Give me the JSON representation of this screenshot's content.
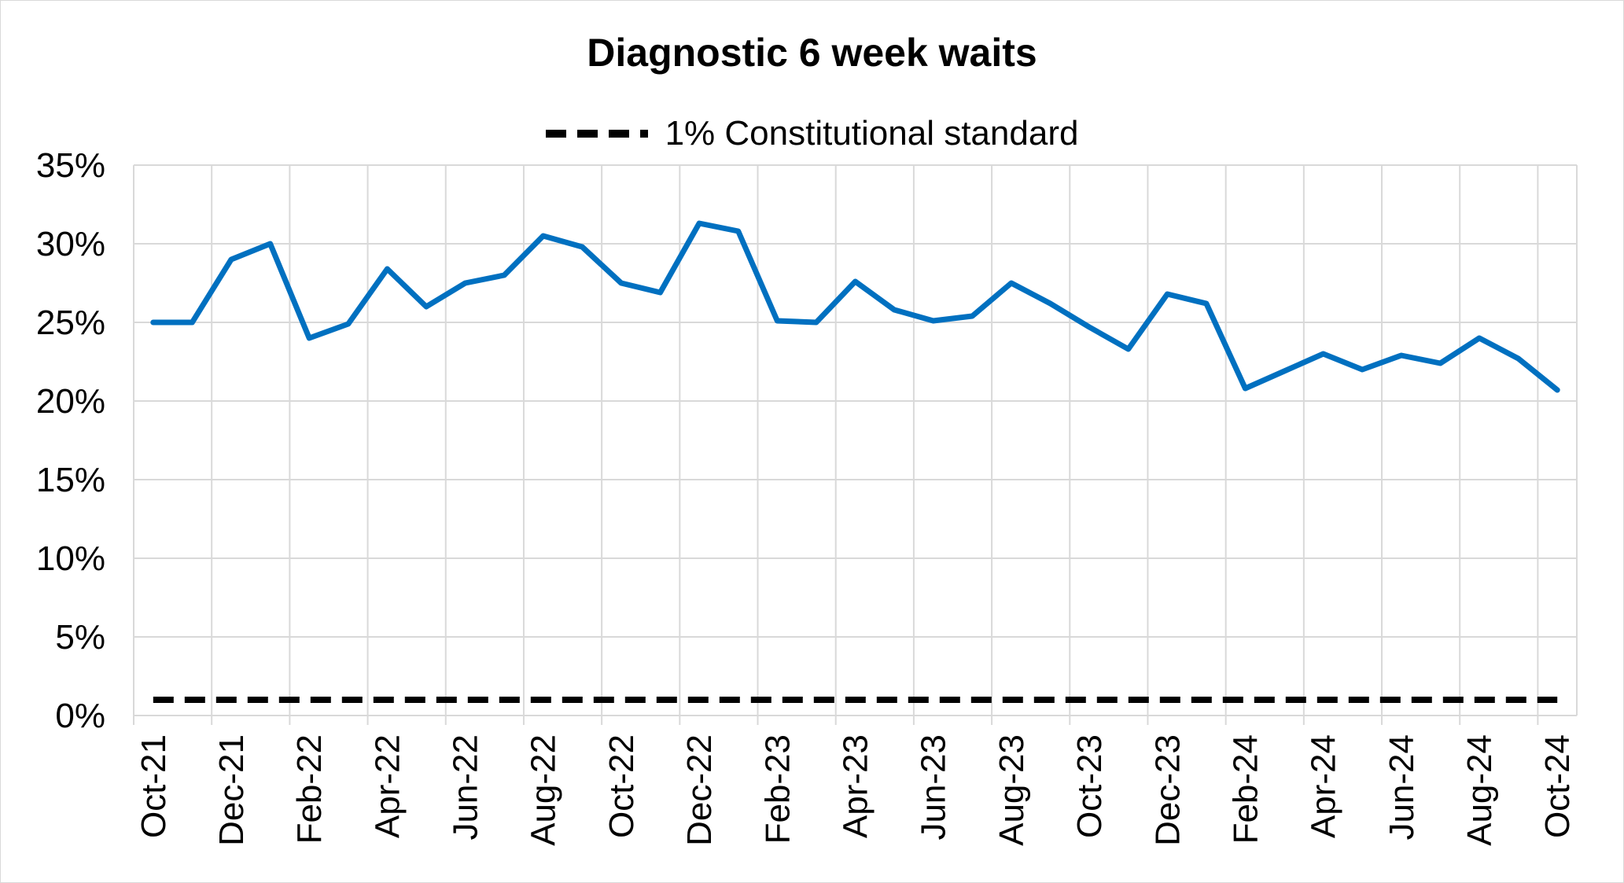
{
  "chart_data": {
    "type": "line",
    "title": "Diagnostic 6 week waits",
    "xlabel": "",
    "ylabel": "",
    "ylim": [
      0,
      35
    ],
    "yticks": [
      "0%",
      "5%",
      "10%",
      "15%",
      "20%",
      "25%",
      "30%",
      "35%"
    ],
    "x": [
      "Oct-21",
      "Nov-21",
      "Dec-21",
      "Jan-22",
      "Feb-22",
      "Mar-22",
      "Apr-22",
      "May-22",
      "Jun-22",
      "Jul-22",
      "Aug-22",
      "Sep-22",
      "Oct-22",
      "Nov-22",
      "Dec-22",
      "Jan-23",
      "Feb-23",
      "Mar-23",
      "Apr-23",
      "May-23",
      "Jun-23",
      "Jul-23",
      "Aug-23",
      "Sep-23",
      "Oct-23",
      "Nov-23",
      "Dec-23",
      "Jan-24",
      "Feb-24",
      "Mar-24",
      "Apr-24",
      "May-24",
      "Jun-24",
      "Jul-24",
      "Aug-24",
      "Sep-24",
      "Oct-24"
    ],
    "xtick_labels": [
      "Oct-21",
      "Dec-21",
      "Feb-22",
      "Apr-22",
      "Jun-22",
      "Aug-22",
      "Oct-22",
      "Dec-22",
      "Feb-23",
      "Apr-23",
      "Jun-23",
      "Aug-23",
      "Oct-23",
      "Dec-23",
      "Feb-24",
      "Apr-24",
      "Jun-24",
      "Aug-24",
      "Oct-24"
    ],
    "series": [
      {
        "name": "Diagnostic 6 week waits",
        "color": "#0070c0",
        "style": "solid",
        "values": [
          25.0,
          25.0,
          29.0,
          30.0,
          24.0,
          24.9,
          28.4,
          26.0,
          27.5,
          28.0,
          30.5,
          29.8,
          27.5,
          26.9,
          31.3,
          30.8,
          25.1,
          25.0,
          27.6,
          25.8,
          25.1,
          25.4,
          27.5,
          26.2,
          24.7,
          23.3,
          26.8,
          26.2,
          20.8,
          21.9,
          23.0,
          22.0,
          22.9,
          22.4,
          24.0,
          22.7,
          20.7
        ]
      },
      {
        "name": "1% Constitutional standard",
        "color": "#000000",
        "style": "dashed",
        "values": [
          1,
          1,
          1,
          1,
          1,
          1,
          1,
          1,
          1,
          1,
          1,
          1,
          1,
          1,
          1,
          1,
          1,
          1,
          1,
          1,
          1,
          1,
          1,
          1,
          1,
          1,
          1,
          1,
          1,
          1,
          1,
          1,
          1,
          1,
          1,
          1,
          1
        ]
      }
    ],
    "legend": {
      "position": "top",
      "entries": [
        "1% Constitutional standard"
      ]
    },
    "grid": true
  }
}
